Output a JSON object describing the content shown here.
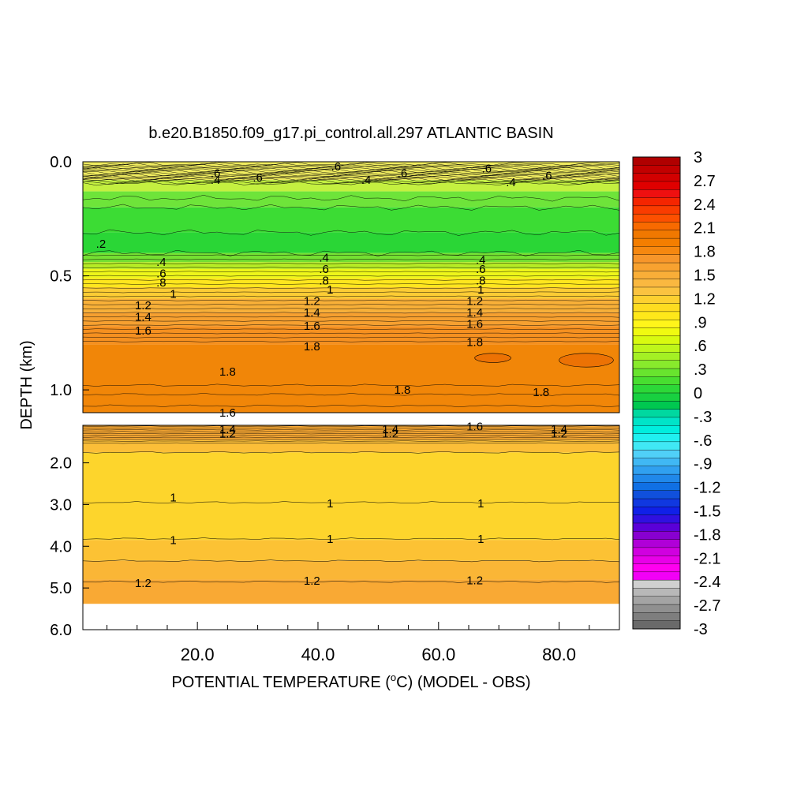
{
  "chart_data": {
    "type": "heatmap",
    "title": "b.e20.B1850.f09_g17.pi_control.all.297 ATLANTIC BASIN",
    "xlabel": "POTENTIAL TEMPERATURE (",
    "xlabel_degree": "o",
    "xlabel_tail": "C) (MODEL - OBS)",
    "ylabel": "DEPTH (km)",
    "xlim": [
      1,
      90
    ],
    "x_ticks": [
      20,
      40,
      60,
      80
    ],
    "x_tick_labels": [
      "20.0",
      "40.0",
      "60.0",
      "80.0"
    ],
    "upper_panel": {
      "ylim": [
        0,
        1.1
      ],
      "y_ticks": [
        0,
        0.5,
        1.0
      ],
      "y_tick_labels": [
        "0.0",
        "0.5",
        "1.0"
      ]
    },
    "lower_panel": {
      "ylim": [
        1.1,
        6.0
      ],
      "y_ticks": [
        2,
        3,
        4,
        5,
        6
      ],
      "y_tick_labels": [
        "2.0",
        "3.0",
        "4.0",
        "5.0",
        "6.0"
      ]
    },
    "colorbar": {
      "labels": [
        "3",
        "2.7",
        "2.4",
        "2.1",
        "1.8",
        "1.5",
        "1.2",
        ".9",
        ".6",
        ".3",
        "0",
        "-.3",
        "-.6",
        "-.9",
        "-1.2",
        "-1.5",
        "-1.8",
        "-2.1",
        "-2.4",
        "-2.7",
        "-3"
      ],
      "colors": [
        "#b00000",
        "#c20000",
        "#d20000",
        "#e00000",
        "#ef1010",
        "#f52500",
        "#fa3c00",
        "#fd5000",
        "#f86a00",
        "#f07800",
        "#f47e00",
        "#f68810",
        "#f7962a",
        "#f8a230",
        "#f9ae38",
        "#fab840",
        "#fbc340",
        "#fdd030",
        "#fedc20",
        "#fee81a",
        "#fff51a",
        "#f0fa10",
        "#d8fa10",
        "#bef61a",
        "#a4f024",
        "#88ea2c",
        "#68e42e",
        "#48de30",
        "#2cd838",
        "#18d040",
        "#00c850",
        "#00d8a0",
        "#00e4c8",
        "#00eede",
        "#20f0f0",
        "#40e8f4",
        "#50d0f8",
        "#40b8f4",
        "#30a0f0",
        "#2088ea",
        "#1070e4",
        "#1050dc",
        "#1038e0",
        "#1020e8",
        "#3010e0",
        "#5a00d8",
        "#8800d0",
        "#b000d8",
        "#d000e0",
        "#e800e8",
        "#ff00f0",
        "#f200f6",
        "#d0d0d0",
        "#b8b8b8",
        "#a4a4a4",
        "#909090",
        "#7e7e7e",
        "#6a6a6a"
      ]
    },
    "contour_labels": {
      "upper": [
        {
          "text": ".6",
          "x": 23,
          "depth": 0.05
        },
        {
          "text": ".4",
          "x": 23,
          "depth": 0.08
        },
        {
          "text": ".6",
          "x": 30,
          "depth": 0.07
        },
        {
          "text": ".6",
          "x": 43,
          "depth": 0.02
        },
        {
          "text": ".4",
          "x": 48,
          "depth": 0.08
        },
        {
          "text": ".6",
          "x": 54,
          "depth": 0.05
        },
        {
          "text": ".6",
          "x": 68,
          "depth": 0.03
        },
        {
          "text": ".4",
          "x": 72,
          "depth": 0.09
        },
        {
          "text": ".6",
          "x": 78,
          "depth": 0.06
        },
        {
          "text": ".2",
          "x": 4,
          "depth": 0.36
        },
        {
          "text": ".4",
          "x": 14,
          "depth": 0.44
        },
        {
          "text": ".6",
          "x": 14,
          "depth": 0.49
        },
        {
          "text": ".8",
          "x": 14,
          "depth": 0.53
        },
        {
          "text": "1",
          "x": 16,
          "depth": 0.58
        },
        {
          "text": "1.2",
          "x": 11,
          "depth": 0.63
        },
        {
          "text": "1.4",
          "x": 11,
          "depth": 0.68
        },
        {
          "text": "1.6",
          "x": 11,
          "depth": 0.74
        },
        {
          "text": ".4",
          "x": 41,
          "depth": 0.42
        },
        {
          "text": ".6",
          "x": 41,
          "depth": 0.47
        },
        {
          "text": ".8",
          "x": 41,
          "depth": 0.52
        },
        {
          "text": "1",
          "x": 42,
          "depth": 0.56
        },
        {
          "text": "1.2",
          "x": 39,
          "depth": 0.61
        },
        {
          "text": "1.4",
          "x": 39,
          "depth": 0.66
        },
        {
          "text": "1.6",
          "x": 39,
          "depth": 0.72
        },
        {
          "text": "1.8",
          "x": 39,
          "depth": 0.81
        },
        {
          "text": ".4",
          "x": 67,
          "depth": 0.43
        },
        {
          "text": ".6",
          "x": 67,
          "depth": 0.47
        },
        {
          "text": ".8",
          "x": 67,
          "depth": 0.52
        },
        {
          "text": "1",
          "x": 67,
          "depth": 0.56
        },
        {
          "text": "1.2",
          "x": 66,
          "depth": 0.61
        },
        {
          "text": "1.4",
          "x": 66,
          "depth": 0.66
        },
        {
          "text": "1.6",
          "x": 66,
          "depth": 0.71
        },
        {
          "text": "1.8",
          "x": 66,
          "depth": 0.79
        },
        {
          "text": "1.8",
          "x": 25,
          "depth": 0.92
        },
        {
          "text": "1.8",
          "x": 54,
          "depth": 1.0
        },
        {
          "text": "1.8",
          "x": 77,
          "depth": 1.01
        },
        {
          "text": "1.6",
          "x": 25,
          "depth": 1.1
        }
      ],
      "lower": [
        {
          "text": "1.4",
          "x": 25,
          "depth": 1.19
        },
        {
          "text": "1.2",
          "x": 25,
          "depth": 1.3
        },
        {
          "text": "1.4",
          "x": 52,
          "depth": 1.19
        },
        {
          "text": "1.2",
          "x": 52,
          "depth": 1.3
        },
        {
          "text": "1.6",
          "x": 66,
          "depth": 1.13
        },
        {
          "text": "1.4",
          "x": 80,
          "depth": 1.19
        },
        {
          "text": "1.2",
          "x": 80,
          "depth": 1.3
        },
        {
          "text": "1",
          "x": 16,
          "depth": 2.83
        },
        {
          "text": "1",
          "x": 42,
          "depth": 2.97
        },
        {
          "text": "1",
          "x": 67,
          "depth": 2.97
        },
        {
          "text": "1",
          "x": 16,
          "depth": 3.85
        },
        {
          "text": "1",
          "x": 42,
          "depth": 3.82
        },
        {
          "text": "1",
          "x": 67,
          "depth": 3.82
        },
        {
          "text": "1.2",
          "x": 11,
          "depth": 4.88
        },
        {
          "text": "1.2",
          "x": 39,
          "depth": 4.83
        },
        {
          "text": "1.2",
          "x": 66,
          "depth": 4.82
        }
      ]
    },
    "bands_upper": [
      {
        "depth": [
          0.0,
          0.08
        ],
        "color": "#f0ec60"
      },
      {
        "depth": [
          0.08,
          0.13
        ],
        "color": "#c4f040"
      },
      {
        "depth": [
          0.13,
          0.2
        ],
        "color": "#6ee43a"
      },
      {
        "depth": [
          0.2,
          0.31
        ],
        "color": "#3cdc34"
      },
      {
        "depth": [
          0.31,
          0.4
        ],
        "color": "#2ad636"
      },
      {
        "depth": [
          0.4,
          0.44
        ],
        "color": "#74e032"
      },
      {
        "depth": [
          0.44,
          0.47
        ],
        "color": "#b6ec24"
      },
      {
        "depth": [
          0.47,
          0.51
        ],
        "color": "#eef61a"
      },
      {
        "depth": [
          0.51,
          0.55
        ],
        "color": "#fee61e"
      },
      {
        "depth": [
          0.55,
          0.6
        ],
        "color": "#fccc34"
      },
      {
        "depth": [
          0.6,
          0.66
        ],
        "color": "#f8b038"
      },
      {
        "depth": [
          0.66,
          0.72
        ],
        "color": "#f6a030"
      },
      {
        "depth": [
          0.72,
          0.8
        ],
        "color": "#f59020"
      },
      {
        "depth": [
          0.8,
          1.1
        ],
        "color": "#f18608"
      }
    ],
    "bands_lower": [
      {
        "depth": [
          1.1,
          1.45
        ],
        "color": "#f9a934"
      },
      {
        "depth": [
          1.45,
          1.75
        ],
        "color": "#fbbe38"
      },
      {
        "depth": [
          1.75,
          3.85
        ],
        "color": "#fdd52c"
      },
      {
        "depth": [
          3.85,
          4.35
        ],
        "color": "#fcc234"
      },
      {
        "depth": [
          4.35,
          4.8
        ],
        "color": "#fab636"
      },
      {
        "depth": [
          4.8,
          5.38
        ],
        "color": "#f9a934"
      }
    ]
  }
}
